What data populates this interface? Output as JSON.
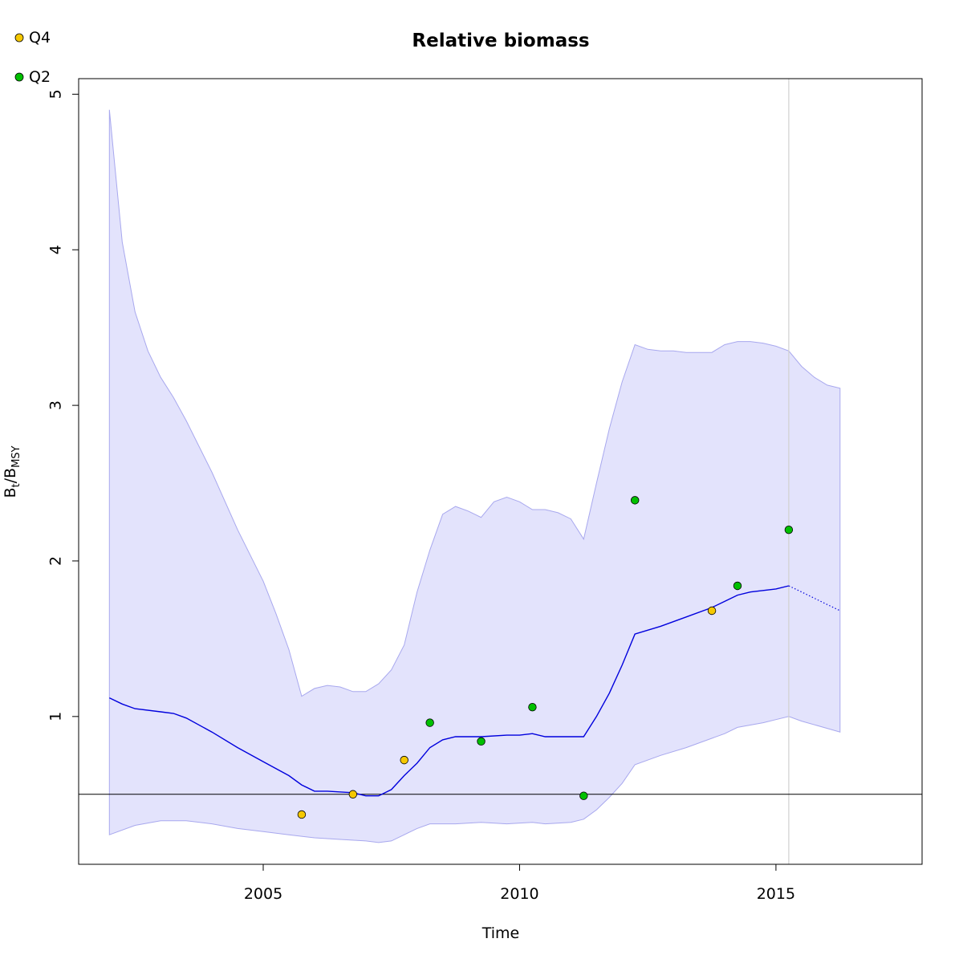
{
  "chart_data": {
    "type": "line",
    "title": "Relative biomass",
    "xlabel": "Time",
    "ylabel": {
      "main": "B",
      "sub1": "t",
      "sep": "/B",
      "sub2": "MSY"
    },
    "xlim": [
      2001.4,
      2017.85
    ],
    "ylim": [
      0.05,
      5.1
    ],
    "x_ticks": [
      2005,
      2010,
      2015
    ],
    "y_ticks": [
      1,
      2,
      3,
      4,
      5
    ],
    "legend": {
      "placement": "top-left",
      "entries": [
        {
          "label": "Q4",
          "color": "#f5c800"
        },
        {
          "label": "Q2",
          "color": "#00c000"
        }
      ]
    },
    "reference_line_y": 0.5,
    "vertical_line_x": 2015.25,
    "colors": {
      "band_fill": "#e3e3fc",
      "band_edge": "#a8a8ee",
      "median_line": "#0000dd",
      "reference_line": "#000000",
      "vertical_line": "#d0d0d0"
    },
    "ci_upper": [
      [
        2002.0,
        4.9
      ],
      [
        2002.25,
        4.05
      ],
      [
        2002.5,
        3.6
      ],
      [
        2002.75,
        3.35
      ],
      [
        2003.0,
        3.18
      ],
      [
        2003.25,
        3.05
      ],
      [
        2003.5,
        2.9
      ],
      [
        2004.0,
        2.57
      ],
      [
        2004.5,
        2.2
      ],
      [
        2005.0,
        1.87
      ],
      [
        2005.25,
        1.66
      ],
      [
        2005.5,
        1.43
      ],
      [
        2005.75,
        1.13
      ],
      [
        2006.0,
        1.18
      ],
      [
        2006.25,
        1.2
      ],
      [
        2006.5,
        1.19
      ],
      [
        2006.75,
        1.16
      ],
      [
        2007.0,
        1.16
      ],
      [
        2007.25,
        1.21
      ],
      [
        2007.5,
        1.3
      ],
      [
        2007.75,
        1.46
      ],
      [
        2008.0,
        1.8
      ],
      [
        2008.25,
        2.07
      ],
      [
        2008.5,
        2.3
      ],
      [
        2008.75,
        2.35
      ],
      [
        2009.0,
        2.32
      ],
      [
        2009.25,
        2.28
      ],
      [
        2009.5,
        2.38
      ],
      [
        2009.75,
        2.41
      ],
      [
        2010.0,
        2.38
      ],
      [
        2010.25,
        2.33
      ],
      [
        2010.5,
        2.33
      ],
      [
        2010.75,
        2.31
      ],
      [
        2011.0,
        2.27
      ],
      [
        2011.25,
        2.14
      ],
      [
        2011.5,
        2.5
      ],
      [
        2011.75,
        2.85
      ],
      [
        2012.0,
        3.15
      ],
      [
        2012.25,
        3.39
      ],
      [
        2012.5,
        3.36
      ],
      [
        2012.75,
        3.35
      ],
      [
        2013.0,
        3.35
      ],
      [
        2013.25,
        3.34
      ],
      [
        2013.5,
        3.34
      ],
      [
        2013.75,
        3.34
      ],
      [
        2014.0,
        3.39
      ],
      [
        2014.25,
        3.41
      ],
      [
        2014.5,
        3.41
      ],
      [
        2014.75,
        3.4
      ],
      [
        2015.0,
        3.38
      ],
      [
        2015.25,
        3.35
      ],
      [
        2015.5,
        3.25
      ],
      [
        2015.75,
        3.18
      ],
      [
        2016.0,
        3.13
      ],
      [
        2016.25,
        3.11
      ]
    ],
    "ci_lower": [
      [
        2002.0,
        0.24
      ],
      [
        2002.5,
        0.3
      ],
      [
        2003.0,
        0.33
      ],
      [
        2003.5,
        0.33
      ],
      [
        2004.0,
        0.31
      ],
      [
        2004.5,
        0.28
      ],
      [
        2005.0,
        0.26
      ],
      [
        2005.5,
        0.24
      ],
      [
        2006.0,
        0.22
      ],
      [
        2006.5,
        0.21
      ],
      [
        2007.0,
        0.2
      ],
      [
        2007.25,
        0.19
      ],
      [
        2007.5,
        0.2
      ],
      [
        2007.75,
        0.24
      ],
      [
        2008.0,
        0.28
      ],
      [
        2008.25,
        0.31
      ],
      [
        2008.75,
        0.31
      ],
      [
        2009.25,
        0.32
      ],
      [
        2009.75,
        0.31
      ],
      [
        2010.25,
        0.32
      ],
      [
        2010.5,
        0.31
      ],
      [
        2011.0,
        0.32
      ],
      [
        2011.25,
        0.34
      ],
      [
        2011.5,
        0.4
      ],
      [
        2011.75,
        0.48
      ],
      [
        2012.0,
        0.57
      ],
      [
        2012.25,
        0.69
      ],
      [
        2012.75,
        0.75
      ],
      [
        2013.25,
        0.8
      ],
      [
        2013.75,
        0.86
      ],
      [
        2014.0,
        0.89
      ],
      [
        2014.25,
        0.93
      ],
      [
        2014.75,
        0.96
      ],
      [
        2015.0,
        0.98
      ],
      [
        2015.25,
        1.0
      ],
      [
        2015.5,
        0.97
      ],
      [
        2016.25,
        0.9
      ]
    ],
    "median": [
      [
        2002.0,
        1.12
      ],
      [
        2002.25,
        1.08
      ],
      [
        2002.5,
        1.05
      ],
      [
        2003.0,
        1.03
      ],
      [
        2003.25,
        1.02
      ],
      [
        2003.5,
        0.99
      ],
      [
        2004.0,
        0.9
      ],
      [
        2004.5,
        0.8
      ],
      [
        2005.0,
        0.71
      ],
      [
        2005.5,
        0.62
      ],
      [
        2005.75,
        0.56
      ],
      [
        2006.0,
        0.52
      ],
      [
        2006.25,
        0.52
      ],
      [
        2006.75,
        0.51
      ],
      [
        2007.0,
        0.49
      ],
      [
        2007.25,
        0.49
      ],
      [
        2007.5,
        0.53
      ],
      [
        2007.75,
        0.62
      ],
      [
        2008.0,
        0.7
      ],
      [
        2008.25,
        0.8
      ],
      [
        2008.5,
        0.85
      ],
      [
        2008.75,
        0.87
      ],
      [
        2009.25,
        0.87
      ],
      [
        2009.75,
        0.88
      ],
      [
        2010.0,
        0.88
      ],
      [
        2010.25,
        0.89
      ],
      [
        2010.5,
        0.87
      ],
      [
        2010.75,
        0.87
      ],
      [
        2011.25,
        0.87
      ],
      [
        2011.5,
        1.0
      ],
      [
        2011.75,
        1.15
      ],
      [
        2012.0,
        1.33
      ],
      [
        2012.25,
        1.53
      ],
      [
        2012.75,
        1.58
      ],
      [
        2013.25,
        1.64
      ],
      [
        2013.75,
        1.7
      ],
      [
        2014.0,
        1.74
      ],
      [
        2014.25,
        1.78
      ],
      [
        2014.5,
        1.8
      ],
      [
        2014.75,
        1.81
      ],
      [
        2015.0,
        1.82
      ],
      [
        2015.25,
        1.84
      ]
    ],
    "forecast": [
      [
        2015.25,
        1.84
      ],
      [
        2015.5,
        1.8
      ],
      [
        2015.75,
        1.76
      ],
      [
        2016.0,
        1.72
      ],
      [
        2016.25,
        1.68
      ]
    ],
    "series": [
      {
        "name": "Q4",
        "color": "#f5c800",
        "points": [
          [
            2005.75,
            0.37
          ],
          [
            2006.75,
            0.5
          ],
          [
            2007.75,
            0.72
          ],
          [
            2013.75,
            1.68
          ]
        ]
      },
      {
        "name": "Q2",
        "color": "#00c000",
        "points": [
          [
            2008.25,
            0.96
          ],
          [
            2009.25,
            0.84
          ],
          [
            2010.25,
            1.06
          ],
          [
            2011.25,
            0.49
          ],
          [
            2012.25,
            2.39
          ],
          [
            2014.25,
            1.84
          ],
          [
            2015.25,
            2.2
          ]
        ]
      }
    ]
  }
}
